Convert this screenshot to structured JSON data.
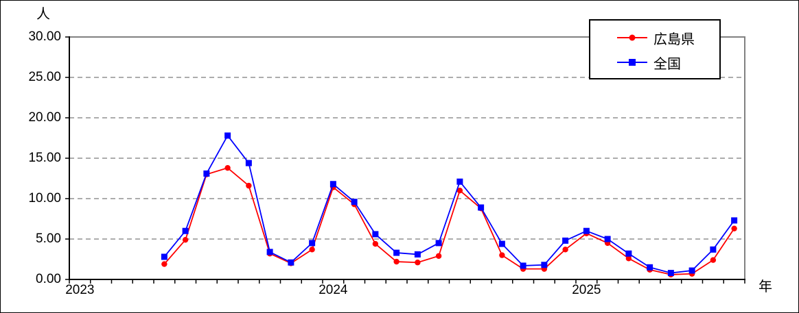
{
  "chart_data": {
    "type": "line",
    "title": "",
    "y_unit_label": "人",
    "x_unit_label": "年",
    "ylim": [
      0,
      30
    ],
    "y_tick_labels": [
      "30.00",
      "25.00",
      "20.00",
      "15.00",
      "10.00",
      "5.00",
      "0.00"
    ],
    "grid": "dashed-horizontal",
    "legend_position": "top-right",
    "x_axis_range": [
      "2023-01",
      "2025-08"
    ],
    "year_labels": [
      {
        "text": "2023",
        "month": "2023-01"
      },
      {
        "text": "2024",
        "month": "2024-01"
      },
      {
        "text": "2025",
        "month": "2025-01"
      }
    ],
    "x": [
      "2023-05",
      "2023-06",
      "2023-07",
      "2023-08",
      "2023-09",
      "2023-10",
      "2023-11",
      "2023-12",
      "2024-01",
      "2024-02",
      "2024-03",
      "2024-04",
      "2024-05",
      "2024-06",
      "2024-07",
      "2024-08",
      "2024-09",
      "2024-10",
      "2024-11",
      "2024-12",
      "2025-01",
      "2025-02",
      "2025-03",
      "2025-04",
      "2025-05",
      "2025-06",
      "2025-07",
      "2025-08"
    ],
    "series": [
      {
        "name": "広島県",
        "color": "#ff0000",
        "marker": "circle",
        "values": [
          1.9,
          4.9,
          13.0,
          13.8,
          11.6,
          3.2,
          2.0,
          3.7,
          11.4,
          9.3,
          4.4,
          2.2,
          2.1,
          2.9,
          11.0,
          8.8,
          3.0,
          1.3,
          1.3,
          3.7,
          5.7,
          4.5,
          2.6,
          1.2,
          0.6,
          0.7,
          2.4,
          6.3
        ]
      },
      {
        "name": "全国",
        "color": "#0000ff",
        "marker": "square",
        "values": [
          2.8,
          6.0,
          13.1,
          17.8,
          14.4,
          3.4,
          2.1,
          4.5,
          11.8,
          9.6,
          5.6,
          3.3,
          3.1,
          4.5,
          12.1,
          8.9,
          4.4,
          1.7,
          1.8,
          4.8,
          6.0,
          5.0,
          3.2,
          1.5,
          0.8,
          1.1,
          3.7,
          7.3
        ]
      }
    ],
    "colors": {
      "axis": "#000000",
      "plot_border": "#808080",
      "gridline": "#909090"
    }
  }
}
